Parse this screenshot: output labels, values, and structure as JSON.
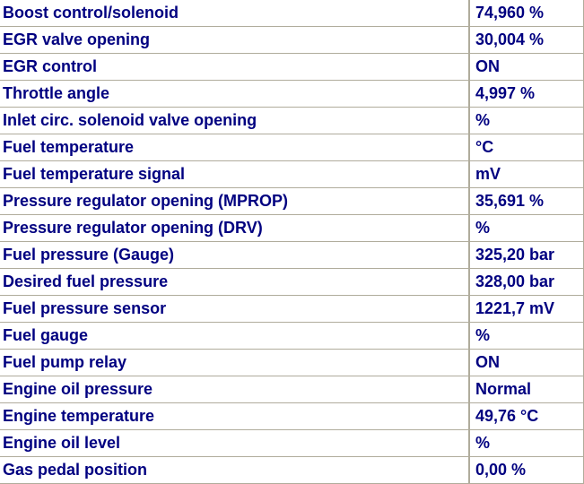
{
  "rows": [
    {
      "label": "Boost control/solenoid",
      "value": "74,960 %"
    },
    {
      "label": "EGR valve opening",
      "value": "30,004 %"
    },
    {
      "label": "EGR control",
      "value": "ON"
    },
    {
      "label": "Throttle angle",
      "value": "4,997 %"
    },
    {
      "label": "Inlet circ. solenoid valve opening",
      "value": " %"
    },
    {
      "label": "Fuel temperature",
      "value": " °C"
    },
    {
      "label": "Fuel temperature signal",
      "value": " mV"
    },
    {
      "label": "Pressure regulator opening (MPROP)",
      "value": "35,691 %"
    },
    {
      "label": "Pressure regulator opening (DRV)",
      "value": " %"
    },
    {
      "label": "Fuel pressure (Gauge)",
      "value": "325,20 bar"
    },
    {
      "label": "Desired fuel pressure",
      "value": "328,00 bar"
    },
    {
      "label": "Fuel pressure sensor",
      "value": "1221,7 mV"
    },
    {
      "label": "Fuel gauge",
      "value": " %"
    },
    {
      "label": "Fuel pump relay",
      "value": "ON"
    },
    {
      "label": "Engine oil pressure",
      "value": "Normal"
    },
    {
      "label": "Engine temperature",
      "value": "49,76 °C"
    },
    {
      "label": "Engine oil level",
      "value": " %"
    },
    {
      "label": "Gas pedal position",
      "value": "0,00 %"
    }
  ]
}
